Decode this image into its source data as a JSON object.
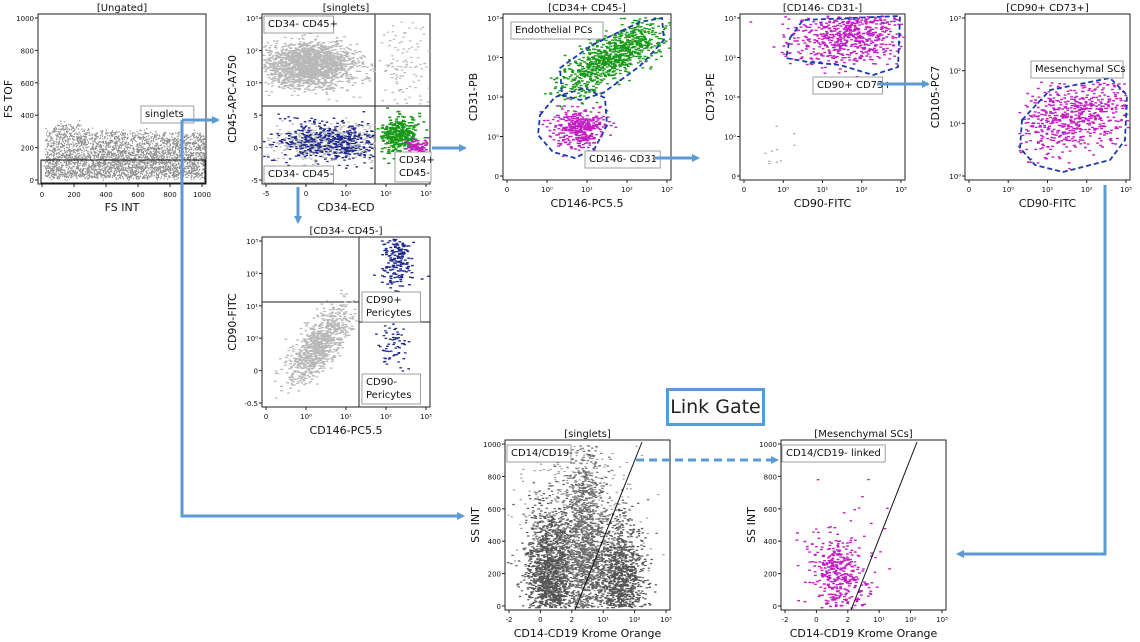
{
  "chart_data": [
    {
      "type": "scatter",
      "title": "[Ungated]",
      "xlabel": "FS INT",
      "ylabel": "FS TOF",
      "xlim": [
        0,
        1000
      ],
      "ylim": [
        0,
        1000
      ],
      "x_ticks": [
        "0",
        "200",
        "400",
        "600",
        "800",
        "1000"
      ],
      "y_ticks": [
        "0",
        "200",
        "400",
        "600",
        "800",
        "1000"
      ],
      "gates": [
        "singlets"
      ],
      "color": "#8c8c8c"
    },
    {
      "type": "scatter",
      "title": "[singlets]",
      "xlabel": "CD34-ECD",
      "ylabel": "CD45-APC-A750",
      "x_ticks": [
        "-5",
        "0",
        "10¹",
        "10²",
        "10³"
      ],
      "y_ticks": [
        "-5",
        "0",
        "5",
        "10¹",
        "10²",
        "10³"
      ],
      "quadrants": [
        "CD34- CD45+",
        "CD34- CD45-",
        "CD34+ CD45-"
      ],
      "colors": [
        "#b8b8b8",
        "#1f2a8c",
        "#1a9a1a",
        "#c21ec2"
      ]
    },
    {
      "type": "scatter",
      "title": "[CD34- CD45-]",
      "xlabel": "CD146-PC5.5",
      "ylabel": "CD90-FITC",
      "x_ticks": [
        "0",
        "10⁰",
        "10¹",
        "10²",
        "10³"
      ],
      "y_ticks": [
        "-0.5",
        "0",
        "10⁰",
        "10¹",
        "10²",
        "10³"
      ],
      "quadrants": [
        "CD90+ Pericytes",
        "CD90- Pericytes"
      ],
      "colors": [
        "#b8b8b8",
        "#1f2a8c"
      ]
    },
    {
      "type": "scatter",
      "title": "[CD34+ CD45-]",
      "xlabel": "CD146-PC5.5",
      "ylabel": "CD31-PB",
      "x_ticks": [
        "0",
        "10⁰",
        "10¹",
        "10²",
        "10³"
      ],
      "y_ticks": [
        "0",
        "10⁰",
        "10¹",
        "10²",
        "10³"
      ],
      "gates": [
        "Endothelial PCs",
        "CD146- CD31-"
      ],
      "colors": [
        "#1a9a1a",
        "#c21ec2"
      ]
    },
    {
      "type": "scatter",
      "title": "[CD146- CD31-]",
      "xlabel": "CD90-FITC",
      "ylabel": "CD73-PE",
      "x_ticks": [
        "0",
        "10⁰",
        "10¹",
        "10²",
        "10³"
      ],
      "y_ticks": [
        "0",
        "10⁰",
        "10¹",
        "10²",
        "10³"
      ],
      "gates": [
        "CD90+ CD73+"
      ],
      "colors": [
        "#c21ec2"
      ]
    },
    {
      "type": "scatter",
      "title": "[CD90+ CD73+]",
      "xlabel": "CD90-FITC",
      "ylabel": "CD105-PC7",
      "x_ticks": [
        "0",
        "10⁰",
        "10¹",
        "10²",
        "10³"
      ],
      "y_ticks": [
        "10⁰",
        "10¹",
        "10²",
        "10³"
      ],
      "gates": [
        "Mesenchymal SCs"
      ],
      "colors": [
        "#c21ec2"
      ]
    },
    {
      "type": "scatter",
      "title": "[singlets]",
      "xlabel": "CD14-CD19 Krome Orange",
      "ylabel": "SS INT",
      "x_ticks": [
        "-2",
        "0",
        "2",
        "10¹",
        "10²",
        "10³"
      ],
      "y_ticks": [
        "0",
        "200",
        "400",
        "600",
        "800",
        "1000"
      ],
      "gates": [
        "CD14/CD19-"
      ],
      "colors": [
        "#555555"
      ]
    },
    {
      "type": "scatter",
      "title": "[Mesenchymal SCs]",
      "xlabel": "CD14-CD19 Krome Orange",
      "ylabel": "SS INT",
      "x_ticks": [
        "-2",
        "0",
        "2",
        "10¹",
        "10²",
        "10³"
      ],
      "y_ticks": [
        "0",
        "200",
        "400",
        "600",
        "800",
        "1000"
      ],
      "gates": [
        "CD14/CD19- linked"
      ],
      "colors": [
        "#c21ec2"
      ]
    }
  ],
  "link_gate_label": "Link Gate",
  "arrow_color": "#5b9bd5"
}
